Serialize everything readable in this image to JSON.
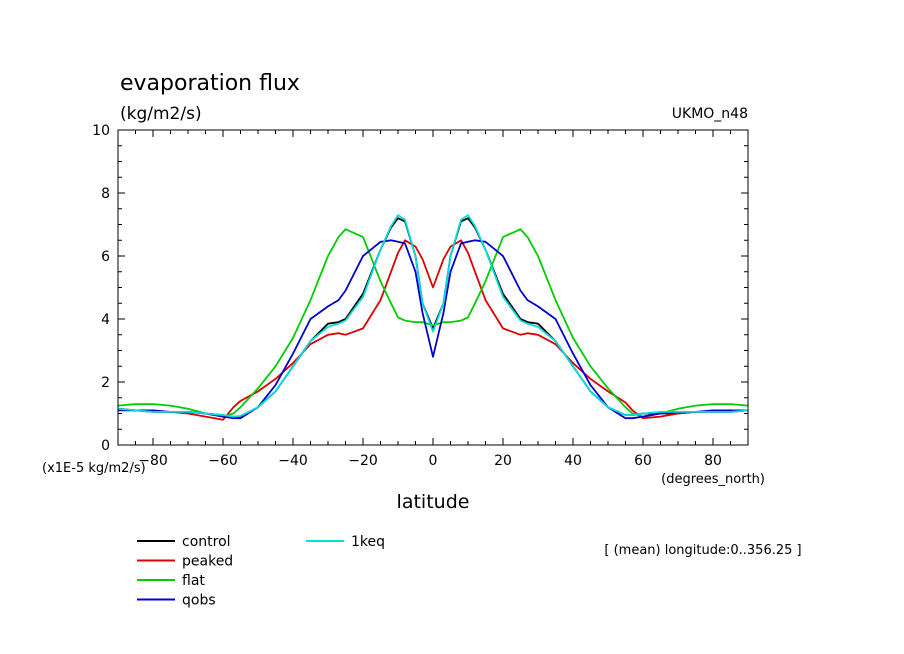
{
  "chart_data": {
    "type": "line",
    "title": "evaporation flux",
    "units": "(kg/m2/s)",
    "model": "UKMO_n48",
    "xlabel": "latitude",
    "x_units": "(degrees_north)",
    "y_scale_label": "(x1E-5 kg/m2/s)",
    "xlim": [
      -90,
      90
    ],
    "ylim": [
      0,
      10
    ],
    "x_ticks": [
      -80,
      -60,
      -40,
      -20,
      0,
      20,
      40,
      60,
      80
    ],
    "y_ticks": [
      0,
      2,
      4,
      6,
      8,
      10
    ],
    "annotation": "[ (mean) longitude:0..356.25 ]",
    "x": [
      -90,
      -85,
      -80,
      -75,
      -70,
      -65,
      -60,
      -57,
      -55,
      -50,
      -45,
      -40,
      -35,
      -30,
      -27,
      -25,
      -20,
      -15,
      -12,
      -10,
      -8,
      -5,
      -3,
      0,
      3,
      5,
      8,
      10,
      12,
      15,
      20,
      25,
      27,
      30,
      35,
      40,
      45,
      50,
      55,
      57,
      60,
      65,
      70,
      75,
      80,
      85,
      90
    ],
    "series": [
      {
        "name": "control",
        "color": "#000000",
        "values": [
          1.15,
          1.1,
          1.05,
          1.05,
          1.05,
          1.0,
          0.95,
          0.9,
          0.9,
          1.2,
          1.7,
          2.5,
          3.3,
          3.85,
          3.9,
          4.0,
          4.8,
          6.2,
          6.9,
          7.2,
          7.1,
          6.0,
          4.5,
          3.7,
          4.5,
          6.0,
          7.1,
          7.2,
          6.9,
          6.2,
          4.8,
          4.0,
          3.9,
          3.85,
          3.3,
          2.5,
          1.7,
          1.2,
          0.95,
          0.95,
          1.0,
          1.0,
          1.0,
          1.05,
          1.05,
          1.05,
          1.1
        ]
      },
      {
        "name": "peaked",
        "color": "#dd0000",
        "values": [
          1.15,
          1.1,
          1.05,
          1.05,
          1.0,
          0.9,
          0.8,
          1.2,
          1.4,
          1.7,
          2.1,
          2.6,
          3.2,
          3.5,
          3.55,
          3.5,
          3.7,
          4.6,
          5.5,
          6.1,
          6.5,
          6.3,
          5.9,
          5.0,
          5.9,
          6.3,
          6.5,
          6.1,
          5.5,
          4.6,
          3.7,
          3.5,
          3.55,
          3.5,
          3.2,
          2.6,
          2.1,
          1.7,
          1.35,
          1.1,
          0.85,
          0.9,
          1.0,
          1.05,
          1.05,
          1.05,
          1.1
        ]
      },
      {
        "name": "flat",
        "color": "#00cc00",
        "values": [
          1.25,
          1.3,
          1.3,
          1.25,
          1.15,
          1.0,
          0.9,
          1.0,
          1.2,
          1.8,
          2.5,
          3.4,
          4.6,
          6.0,
          6.6,
          6.85,
          6.6,
          5.2,
          4.5,
          4.05,
          3.95,
          3.9,
          3.9,
          3.8,
          3.9,
          3.9,
          3.95,
          4.05,
          4.5,
          5.2,
          6.6,
          6.85,
          6.6,
          6.0,
          4.6,
          3.4,
          2.5,
          1.8,
          1.2,
          1.0,
          0.9,
          1.0,
          1.15,
          1.25,
          1.3,
          1.3,
          1.25
        ]
      },
      {
        "name": "qobs",
        "color": "#0000cc",
        "values": [
          1.1,
          1.1,
          1.1,
          1.05,
          1.05,
          1.0,
          0.9,
          0.85,
          0.85,
          1.2,
          1.9,
          2.9,
          4.0,
          4.4,
          4.6,
          4.9,
          6.0,
          6.45,
          6.5,
          6.45,
          6.4,
          5.5,
          4.2,
          2.8,
          4.2,
          5.5,
          6.4,
          6.45,
          6.5,
          6.45,
          6.0,
          4.9,
          4.6,
          4.4,
          4.0,
          2.9,
          1.9,
          1.2,
          0.85,
          0.85,
          0.9,
          1.0,
          1.05,
          1.05,
          1.1,
          1.1,
          1.1
        ]
      },
      {
        "name": "1keq",
        "color": "#00dddd",
        "values": [
          1.15,
          1.1,
          1.05,
          1.05,
          1.05,
          1.0,
          0.95,
          0.9,
          0.92,
          1.2,
          1.7,
          2.5,
          3.3,
          3.75,
          3.85,
          3.95,
          4.7,
          6.2,
          6.95,
          7.3,
          7.15,
          6.0,
          4.5,
          3.6,
          4.5,
          6.0,
          7.15,
          7.3,
          6.95,
          6.2,
          4.7,
          3.95,
          3.85,
          3.75,
          3.3,
          2.5,
          1.7,
          1.2,
          0.95,
          0.95,
          1.0,
          1.05,
          1.05,
          1.05,
          1.05,
          1.05,
          1.1
        ]
      }
    ]
  }
}
